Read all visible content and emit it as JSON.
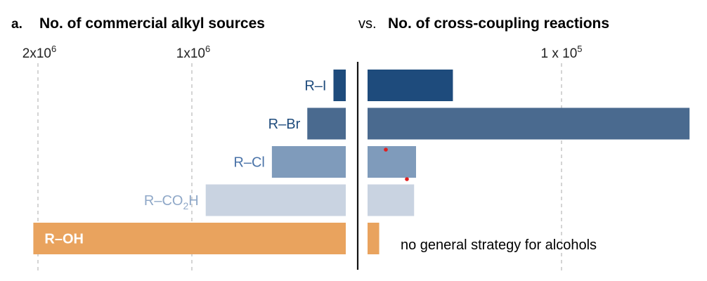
{
  "panel_label": "a.",
  "left_title": "No. of commercial alkyl sources",
  "vs_text": "vs.",
  "right_title": "No. of cross-coupling reactions",
  "annotation": "no general strategy for alcohols",
  "colors": {
    "R-I": "#1e4b7c",
    "R-Br": "#4a6a8f",
    "R-Cl": "#7f9bbb",
    "R-CO2H": "#c9d3e1",
    "R-OH": "#e9a35e",
    "label_R-I": "#1e4b7c",
    "label_R-Br": "#1e4b7c",
    "label_R-Cl": "#4a73a8",
    "label_R-CO2H": "#8fa8c8",
    "label_R-OH": "#ffffff",
    "marker": "#e02020"
  },
  "chart_data": [
    {
      "type": "bar",
      "orientation": "horizontal",
      "direction": "leftward",
      "title": "No. of commercial alkyl sources",
      "categories": [
        "R–I",
        "R–Br",
        "R–Cl",
        "R–CO2H",
        "R–OH"
      ],
      "category_keys": [
        "R-I",
        "R-Br",
        "R-Cl",
        "R-CO2H",
        "R-OH"
      ],
      "values": [
        80000,
        250000,
        480000,
        910000,
        2030000
      ],
      "xlim": [
        0,
        2100000
      ],
      "ticks": [
        {
          "value": 2000000,
          "base": "2x10",
          "exp": "6"
        },
        {
          "value": 1000000,
          "base": "1x10",
          "exp": "6"
        }
      ],
      "grid": "dashed vertical at ticks"
    },
    {
      "type": "bar",
      "orientation": "horizontal",
      "direction": "rightward",
      "title": "No. of cross-coupling reactions",
      "categories": [
        "R–I",
        "R–Br",
        "R–Cl",
        "R–CO2H",
        "R–OH"
      ],
      "category_keys": [
        "R-I",
        "R-Br",
        "R-Cl",
        "R-CO2H",
        "R-OH"
      ],
      "values": [
        44000,
        166000,
        25000,
        24000,
        6000
      ],
      "xlim": [
        0,
        172000
      ],
      "ticks": [
        {
          "value": 100000,
          "base": "1 x 10",
          "exp": "5"
        }
      ],
      "grid": "dashed vertical at ticks"
    }
  ]
}
